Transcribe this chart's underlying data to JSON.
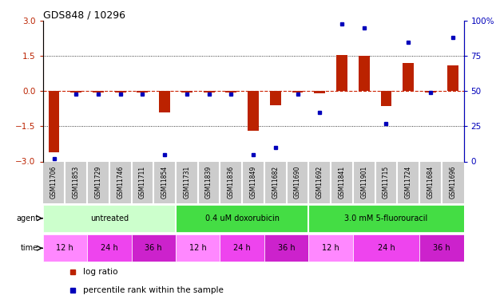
{
  "title": "GDS848 / 10296",
  "samples": [
    "GSM11706",
    "GSM11853",
    "GSM11729",
    "GSM11746",
    "GSM11711",
    "GSM11854",
    "GSM11731",
    "GSM11839",
    "GSM11836",
    "GSM11849",
    "GSM11682",
    "GSM11690",
    "GSM11692",
    "GSM11841",
    "GSM11901",
    "GSM11715",
    "GSM11724",
    "GSM11684",
    "GSM11696"
  ],
  "log_ratio": [
    -2.6,
    -0.05,
    -0.05,
    -0.05,
    -0.05,
    -0.9,
    -0.05,
    -0.05,
    -0.05,
    -1.7,
    -0.6,
    -0.05,
    -0.1,
    1.55,
    1.5,
    -0.65,
    1.2,
    -0.05,
    1.1
  ],
  "percentile": [
    2,
    48,
    48,
    48,
    48,
    5,
    48,
    48,
    48,
    5,
    10,
    48,
    35,
    98,
    95,
    27,
    85,
    49,
    88
  ],
  "agents": [
    {
      "label": "untreated",
      "start": 0,
      "end": 6,
      "color": "#ccffcc"
    },
    {
      "label": "0.4 uM doxorubicin",
      "start": 6,
      "end": 12,
      "color": "#44dd44"
    },
    {
      "label": "3.0 mM 5-fluorouracil",
      "start": 12,
      "end": 19,
      "color": "#44dd44"
    }
  ],
  "times": [
    {
      "label": "12 h",
      "start": 0,
      "end": 2,
      "color": "#ff88ff"
    },
    {
      "label": "24 h",
      "start": 2,
      "end": 4,
      "color": "#ee55ee"
    },
    {
      "label": "36 h",
      "start": 4,
      "end": 6,
      "color": "#dd44dd"
    },
    {
      "label": "12 h",
      "start": 6,
      "end": 8,
      "color": "#ff88ff"
    },
    {
      "label": "24 h",
      "start": 8,
      "end": 10,
      "color": "#ee55ee"
    },
    {
      "label": "36 h",
      "start": 10,
      "end": 12,
      "color": "#dd44dd"
    },
    {
      "label": "12 h",
      "start": 12,
      "end": 14,
      "color": "#ff88ff"
    },
    {
      "label": "24 h",
      "start": 14,
      "end": 17,
      "color": "#ee55ee"
    },
    {
      "label": "36 h",
      "start": 17,
      "end": 19,
      "color": "#dd44dd"
    }
  ],
  "ylim_left": [
    -3,
    3
  ],
  "ylim_right": [
    0,
    100
  ],
  "yticks_left": [
    -3,
    -1.5,
    0,
    1.5,
    3
  ],
  "yticks_right": [
    0,
    25,
    50,
    75,
    100
  ],
  "bar_color": "#bb2200",
  "dot_color": "#0000bb",
  "zero_line_color": "#cc2200",
  "grid_line_color": "#000000",
  "bg_color": "#ffffff",
  "sample_bg": "#cccccc"
}
